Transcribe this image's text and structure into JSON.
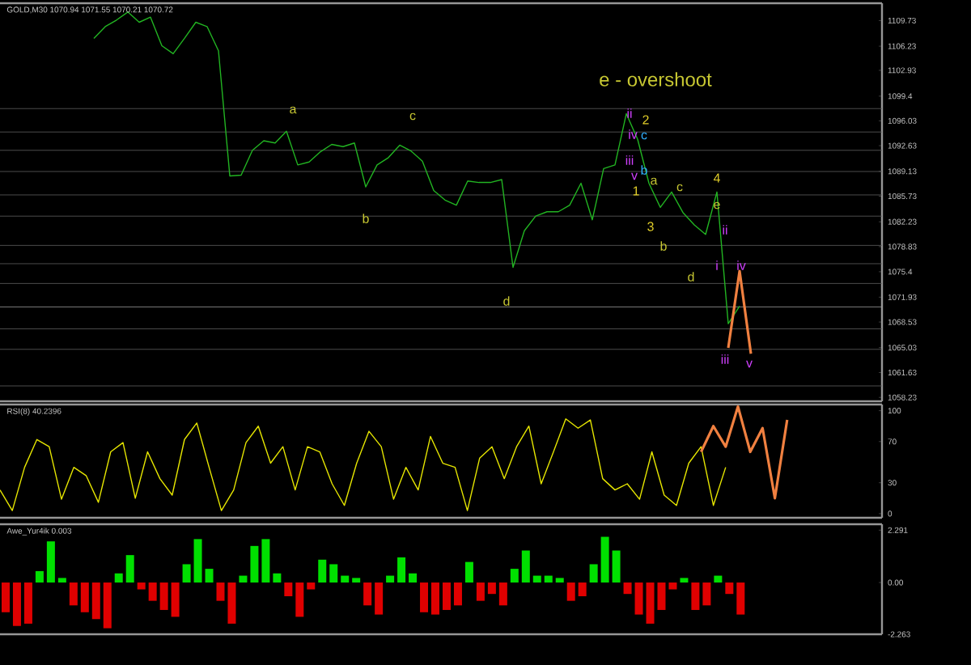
{
  "chart_data": [
    {
      "type": "line",
      "title": "GOLD,M30 1070.94 1071.55 1070.21 1070.72",
      "categories": [
        null,
        null,
        null,
        null,
        null,
        null,
        null,
        null,
        null,
        null,
        null,
        null,
        null,
        null,
        null,
        null,
        null,
        null,
        null,
        null,
        null,
        null,
        null,
        null,
        null,
        null,
        null,
        null,
        null,
        null,
        null,
        null,
        null,
        null,
        null,
        null,
        null,
        null,
        null,
        null,
        null,
        null,
        null,
        null,
        null,
        null,
        null,
        null,
        null,
        null,
        null,
        null,
        null,
        null,
        null,
        null,
        null,
        null,
        null
      ],
      "series": [
        {
          "color": "#22b422",
          "values": [
            1107.3,
            1108.9,
            1109.8,
            1110.9,
            1109.5,
            1110.2,
            1106.3,
            1105.2,
            1107.3,
            1109.5,
            1108.9,
            1105.6,
            1088.5,
            1088.6,
            1092.0,
            1093.3,
            1093.0,
            1094.6,
            1090.0,
            1090.4,
            1091.8,
            1092.8,
            1092.5,
            1093.0,
            1087.0,
            1090.0,
            1091.0,
            1092.7,
            1091.9,
            1090.5,
            1086.5,
            1085.2,
            1084.5,
            1087.8,
            1087.6,
            1087.6,
            1088.0,
            1076.0,
            1081.0,
            1083.0,
            1083.6,
            1083.6,
            1084.5,
            1087.5,
            1082.5,
            1089.5,
            1090.0,
            1097.0,
            1093.5,
            1087.5,
            1084.2,
            1086.3,
            1083.5,
            1081.8,
            1080.5,
            1086.3,
            1068.3,
            1070.7,
            null
          ]
        },
        {
          "color": "#f08040",
          "values": [
            null,
            null,
            null,
            null,
            null,
            null,
            null,
            null,
            null,
            null,
            null,
            null,
            null,
            null,
            null,
            null,
            null,
            null,
            null,
            null,
            null,
            null,
            null,
            null,
            null,
            null,
            null,
            null,
            null,
            null,
            null,
            null,
            null,
            null,
            null,
            null,
            null,
            null,
            null,
            null,
            null,
            null,
            null,
            null,
            null,
            null,
            null,
            null,
            null,
            null,
            null,
            null,
            null,
            null,
            null,
            null,
            1065.0,
            1075.5,
            1064.2
          ]
        }
      ],
      "ylim": [
        1057.7,
        1112.1
      ],
      "yticks": [
        1058.23,
        1061.63,
        1065.03,
        1068.53,
        1071.93,
        1075.4,
        1078.83,
        1082.23,
        1085.73,
        1089.13,
        1092.63,
        1096.03,
        1099.4,
        1102.93,
        1106.23,
        1109.73
      ],
      "ref_lines": [
        {
          "axis": "y",
          "value": 1097.7,
          "color": "#606060"
        },
        {
          "axis": "y",
          "value": 1094.5,
          "color": "#606060"
        },
        {
          "axis": "y",
          "value": 1092.0,
          "color": "#606060"
        },
        {
          "axis": "y",
          "value": 1089.1,
          "color": "#606060"
        },
        {
          "axis": "y",
          "value": 1085.9,
          "color": "#606060"
        },
        {
          "axis": "y",
          "value": 1083.0,
          "color": "#606060"
        },
        {
          "axis": "y",
          "value": 1079.0,
          "color": "#606060"
        },
        {
          "axis": "y",
          "value": 1076.5,
          "color": "#606060"
        },
        {
          "axis": "y",
          "value": 1073.8,
          "color": "#606060"
        },
        {
          "axis": "y",
          "value": 1070.6,
          "color": "#a0a0a0"
        },
        {
          "axis": "y",
          "value": 1067.6,
          "color": "#606060"
        },
        {
          "axis": "y",
          "value": 1064.8,
          "color": "#606060"
        },
        {
          "axis": "y",
          "value": 1059.8,
          "color": "#606060"
        }
      ],
      "annotations": [
        "a",
        "b",
        "c",
        "d",
        "e - overshoot",
        "2",
        "1",
        "3",
        "a",
        "c",
        "4",
        "e",
        "b",
        "d",
        "ii",
        "i",
        "iv",
        "iii",
        "v",
        "ii",
        "iv",
        "iii",
        "v",
        "b",
        "c"
      ],
      "tick_labels": "y"
    },
    {
      "type": "line",
      "title": "RSI(8) 40.2396",
      "categories": [
        null,
        null,
        null,
        null,
        null,
        null,
        null,
        null,
        null,
        null,
        null,
        null,
        null,
        null,
        null,
        null,
        null,
        null,
        null,
        null,
        null,
        null,
        null,
        null,
        null,
        null,
        null,
        null,
        null,
        null,
        null,
        null,
        null,
        null,
        null,
        null,
        null,
        null,
        null,
        null,
        null,
        null,
        null,
        null,
        null,
        null,
        null,
        null,
        null,
        null,
        null,
        null,
        null,
        null,
        null,
        null,
        null,
        null,
        null,
        null,
        null,
        null,
        null,
        null,
        null
      ],
      "series": [
        {
          "color": "#e6e600",
          "values": [
            23,
            3,
            45,
            72,
            65,
            14,
            45,
            37,
            11,
            60,
            69,
            15,
            60,
            34,
            18,
            72,
            88,
            45,
            3,
            23,
            69,
            85,
            49,
            65,
            23,
            65,
            60,
            29,
            8,
            49,
            80,
            65,
            14,
            45,
            23,
            75,
            49,
            45,
            3,
            54,
            65,
            34,
            65,
            85,
            29,
            60,
            92,
            83,
            91,
            34,
            23,
            29,
            14,
            60,
            18,
            8,
            49,
            65,
            8,
            45,
            null,
            null,
            null,
            null,
            null
          ]
        },
        {
          "color": "#f08040",
          "values": [
            null,
            null,
            null,
            null,
            null,
            null,
            null,
            null,
            null,
            null,
            null,
            null,
            null,
            null,
            null,
            null,
            null,
            null,
            null,
            null,
            null,
            null,
            null,
            null,
            null,
            null,
            null,
            null,
            null,
            null,
            null,
            null,
            null,
            null,
            null,
            null,
            null,
            null,
            null,
            null,
            null,
            null,
            null,
            null,
            null,
            null,
            null,
            null,
            null,
            null,
            null,
            null,
            null,
            null,
            null,
            null,
            null,
            60,
            85,
            65,
            104,
            60,
            83,
            15,
            91
          ]
        }
      ],
      "ylim": [
        -4,
        106
      ],
      "yticks": [
        0,
        30,
        70,
        100
      ],
      "tick_labels": "y"
    },
    {
      "type": "bar",
      "title": "Awe_Yur4ik 0.003",
      "categories": [
        null,
        null,
        null,
        null,
        null,
        null,
        null,
        null,
        null,
        null,
        null,
        null,
        null,
        null,
        null,
        null,
        null,
        null,
        null,
        null,
        null,
        null,
        null,
        null,
        null,
        null,
        null,
        null,
        null,
        null,
        null,
        null,
        null,
        null,
        null,
        null,
        null,
        null,
        null,
        null,
        null,
        null,
        null,
        null,
        null,
        null,
        null,
        null,
        null,
        null,
        null,
        null,
        null,
        null,
        null,
        null,
        null,
        null,
        null,
        null,
        null,
        null,
        null,
        null,
        null,
        null,
        null,
        null,
        null,
        null,
        null,
        null,
        null,
        null,
        null,
        null,
        null,
        null
      ],
      "values": [
        -1.3,
        -1.9,
        -1.8,
        0.5,
        1.8,
        0.2,
        -1.0,
        -1.3,
        -1.6,
        -2.0,
        0.4,
        1.2,
        -0.3,
        -0.8,
        -1.2,
        -1.5,
        0.8,
        1.9,
        0.6,
        -0.8,
        -1.8,
        0.3,
        1.6,
        1.9,
        0.4,
        -0.6,
        -1.5,
        -0.3,
        1.0,
        0.8,
        0.3,
        0.2,
        -1.0,
        -1.4,
        0.3,
        1.1,
        0.4,
        -1.3,
        -1.4,
        -1.2,
        -1.0,
        0.9,
        -0.8,
        -0.5,
        -1.0,
        0.6,
        1.4,
        0.3,
        0.3,
        0.2,
        -0.8,
        -0.6,
        0.8,
        2.0,
        1.4,
        -0.5,
        -1.4,
        -1.8,
        -1.2,
        -0.3,
        0.2,
        -1.2,
        -1.0,
        0.3,
        -0.5,
        -1.4,
        null,
        null,
        null,
        null,
        null,
        null,
        null,
        null,
        null,
        null,
        null,
        null
      ],
      "colors": [
        "#e00000",
        "#e00000",
        "#e00000",
        "#00e000",
        "#00e000",
        "#00e000",
        "#e00000",
        "#e00000",
        "#e00000",
        "#e00000",
        "#00e000",
        "#00e000",
        "#e00000",
        "#e00000",
        "#e00000",
        "#e00000",
        "#00e000",
        "#00e000",
        "#00e000",
        "#e00000",
        "#e00000",
        "#00e000",
        "#00e000",
        "#00e000",
        "#00e000",
        "#e00000",
        "#e00000",
        "#e00000",
        "#00e000",
        "#00e000",
        "#00e000",
        "#00e000",
        "#e00000",
        "#e00000",
        "#00e000",
        "#00e000",
        "#00e000",
        "#e00000",
        "#e00000",
        "#e00000",
        "#e00000",
        "#00e000",
        "#e00000",
        "#e00000",
        "#e00000",
        "#00e000",
        "#00e000",
        "#00e000",
        "#00e000",
        "#00e000",
        "#e00000",
        "#e00000",
        "#00e000",
        "#00e000",
        "#00e000",
        "#e00000",
        "#e00000",
        "#e00000",
        "#e00000",
        "#e00000",
        "#00e000",
        "#e00000",
        "#e00000",
        "#00e000",
        "#e00000",
        "#e00000",
        null,
        null,
        null,
        null,
        null,
        null,
        null,
        null,
        null,
        null,
        null,
        null
      ],
      "ylim": [
        -2.263,
        2.55
      ],
      "yticks": [
        -2.263,
        {
          "value": 0,
          "label": "0.00"
        },
        2.291
      ],
      "tick_labels": "y"
    }
  ]
}
